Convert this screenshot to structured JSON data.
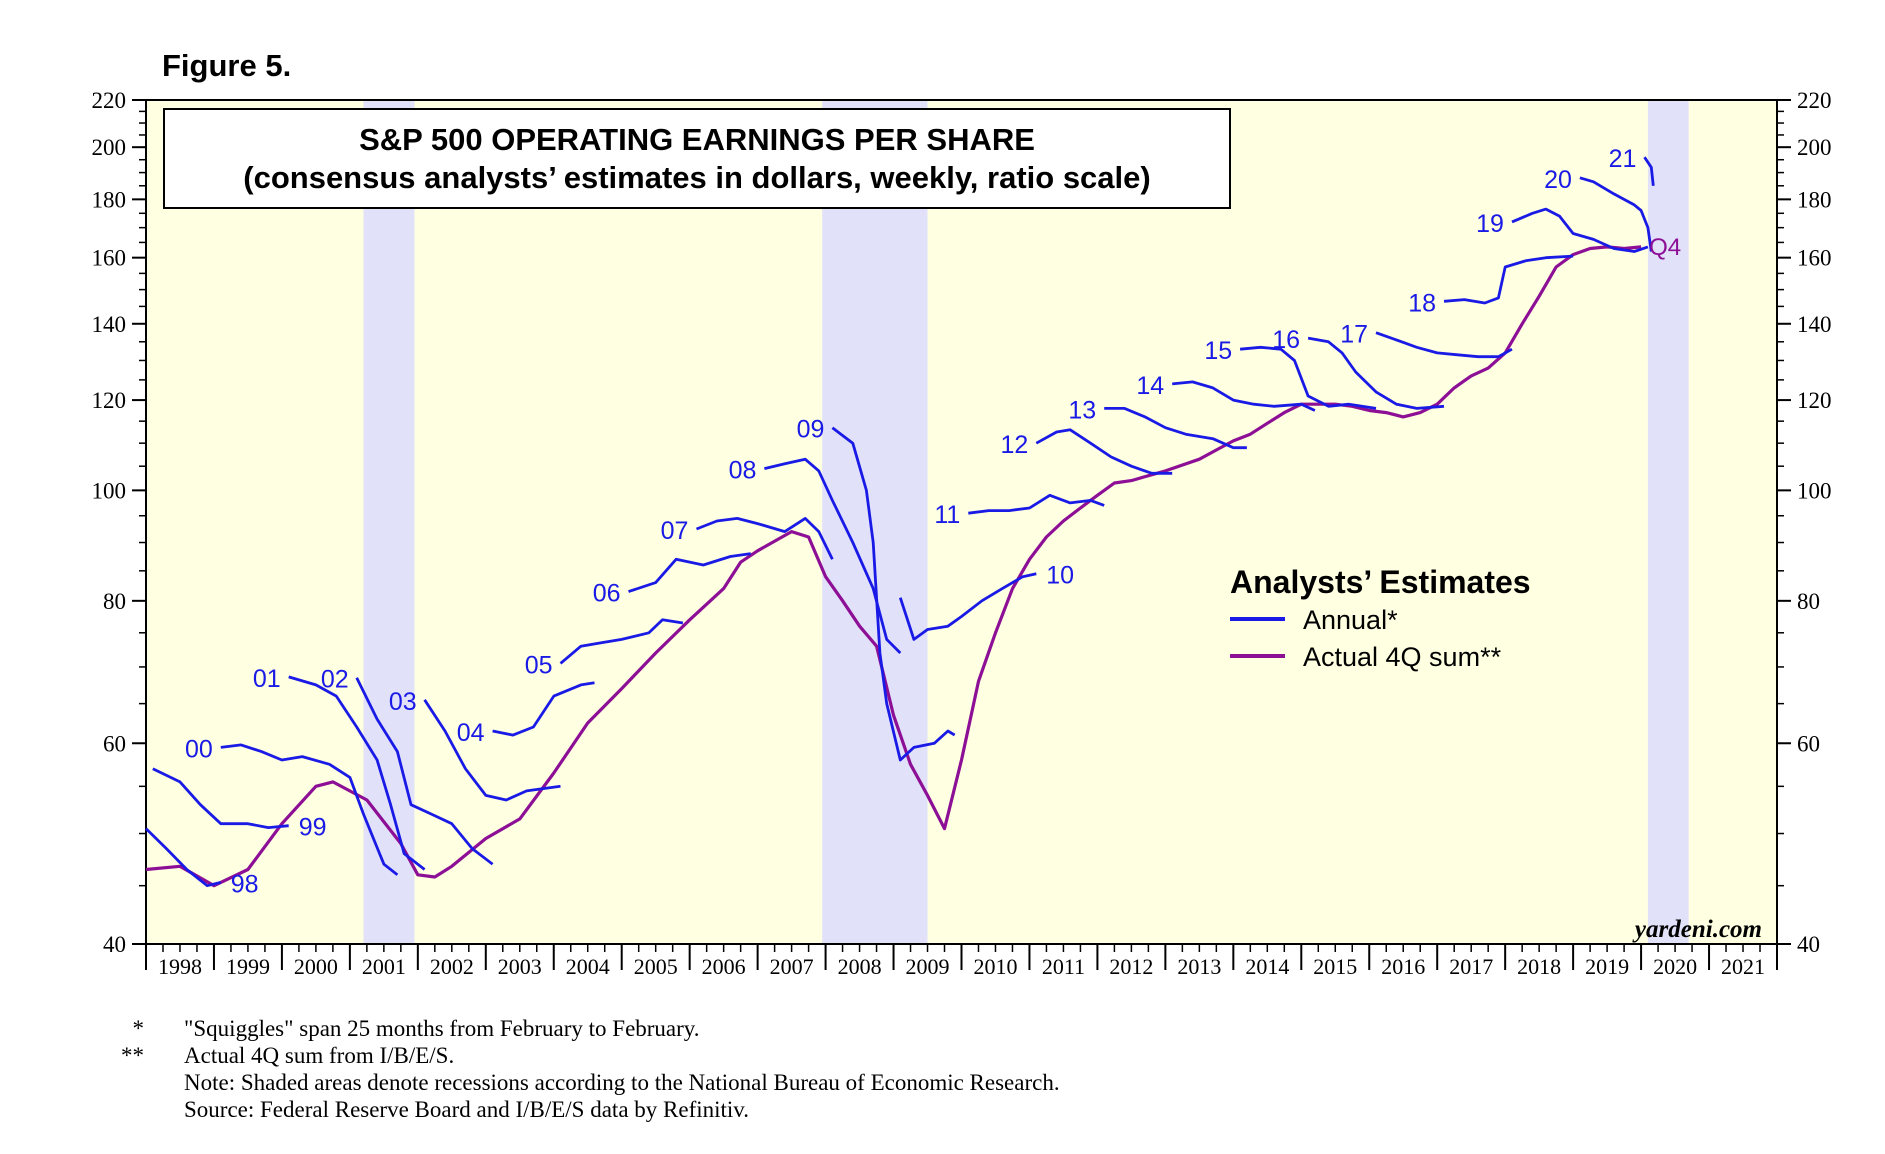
{
  "figure_label": "Figure 5.",
  "watermark": "yardeni.com",
  "notes": {
    "star1_mark": "*",
    "star1_text": "\"Squiggles\" span 25 months from February to February.",
    "star2_mark": "**",
    "star2_text": "Actual 4Q sum from I/B/E/S.",
    "note": "Note: Shaded areas denote recessions according to the National Bureau of Economic Research.",
    "source": "Source: Federal Reserve Board and I/B/E/S data by Refinitiv."
  },
  "colors": {
    "plot_background": "#ffffe1",
    "recession_band": "#e1e1fa",
    "annual_estimates": "#1a1ae6",
    "actual_4q_sum": "#8c0f96",
    "label_blue": "#1a1ae6",
    "label_purple": "#8c0f96"
  },
  "chart_data": {
    "type": "line",
    "title": "S&P 500 OPERATING EARNINGS PER SHARE",
    "subtitle": "(consensus analysts’ estimates in dollars, weekly, ratio scale)",
    "y_scale": "log",
    "ylim": [
      40,
      220
    ],
    "y_ticks": [
      40,
      60,
      80,
      100,
      120,
      140,
      160,
      180,
      200,
      220
    ],
    "y_axes": "left and right",
    "xlim": [
      1998.0,
      2022.0
    ],
    "x_tick_labels": [
      "1998",
      "1999",
      "2000",
      "2001",
      "2002",
      "2003",
      "2004",
      "2005",
      "2006",
      "2007",
      "2008",
      "2009",
      "2010",
      "2011",
      "2012",
      "2013",
      "2014",
      "2015",
      "2016",
      "2017",
      "2018",
      "2019",
      "2020",
      "2021"
    ],
    "grid": false,
    "legend": {
      "title": "Analysts’ Estimates",
      "placement": "center-right",
      "items": [
        {
          "label": "Annual*",
          "series": "annual"
        },
        {
          "label": "Actual 4Q sum**",
          "series": "actual"
        }
      ]
    },
    "recessions": [
      [
        2001.2,
        2001.95
      ],
      [
        2007.95,
        2009.5
      ],
      [
        2020.1,
        2020.7
      ]
    ],
    "annual_estimates": [
      {
        "label": "98",
        "points": [
          [
            1998.0,
            50.5
          ],
          [
            1998.3,
            48.5
          ],
          [
            1998.6,
            46.5
          ],
          [
            1998.9,
            45.0
          ],
          [
            1999.1,
            45.3
          ]
        ]
      },
      {
        "label": "99",
        "points": [
          [
            1998.1,
            57.0
          ],
          [
            1998.5,
            55.5
          ],
          [
            1998.8,
            53.0
          ],
          [
            1999.1,
            51.0
          ],
          [
            1999.5,
            51.0
          ],
          [
            1999.8,
            50.6
          ],
          [
            2000.1,
            50.8
          ]
        ]
      },
      {
        "label": "00",
        "points": [
          [
            1999.1,
            59.5
          ],
          [
            1999.4,
            59.8
          ],
          [
            1999.7,
            59.0
          ],
          [
            2000.0,
            58.0
          ],
          [
            2000.3,
            58.4
          ],
          [
            2000.7,
            57.5
          ],
          [
            2001.0,
            56.0
          ],
          [
            2001.2,
            52.0
          ],
          [
            2001.5,
            47.0
          ],
          [
            2001.7,
            46.0
          ]
        ]
      },
      {
        "label": "01",
        "points": [
          [
            2000.1,
            68.6
          ],
          [
            2000.5,
            67.5
          ],
          [
            2000.8,
            66.0
          ],
          [
            2001.1,
            62.0
          ],
          [
            2001.4,
            58.0
          ],
          [
            2001.6,
            53.0
          ],
          [
            2001.8,
            48.0
          ],
          [
            2002.1,
            46.5
          ]
        ]
      },
      {
        "label": "02",
        "points": [
          [
            2001.1,
            68.5
          ],
          [
            2001.4,
            63.0
          ],
          [
            2001.7,
            59.0
          ],
          [
            2001.9,
            53.0
          ],
          [
            2002.2,
            52.0
          ],
          [
            2002.5,
            51.0
          ],
          [
            2002.8,
            48.5
          ],
          [
            2003.1,
            47.0
          ]
        ]
      },
      {
        "label": "03",
        "points": [
          [
            2002.1,
            65.5
          ],
          [
            2002.4,
            61.5
          ],
          [
            2002.7,
            57.0
          ],
          [
            2003.0,
            54.0
          ],
          [
            2003.3,
            53.5
          ],
          [
            2003.6,
            54.5
          ],
          [
            2004.1,
            55.0
          ]
        ]
      },
      {
        "label": "04",
        "points": [
          [
            2003.1,
            61.5
          ],
          [
            2003.4,
            61.0
          ],
          [
            2003.7,
            62.0
          ],
          [
            2004.0,
            66.0
          ],
          [
            2004.4,
            67.5
          ],
          [
            2004.6,
            67.8
          ]
        ]
      },
      {
        "label": "05",
        "points": [
          [
            2004.1,
            70.5
          ],
          [
            2004.4,
            73.0
          ],
          [
            2004.7,
            73.5
          ],
          [
            2005.0,
            74.0
          ],
          [
            2005.4,
            75.0
          ],
          [
            2005.6,
            77.0
          ],
          [
            2005.9,
            76.5
          ]
        ]
      },
      {
        "label": "06",
        "points": [
          [
            2005.1,
            81.5
          ],
          [
            2005.5,
            83.0
          ],
          [
            2005.8,
            87.0
          ],
          [
            2006.2,
            86.0
          ],
          [
            2006.6,
            87.5
          ],
          [
            2006.9,
            88.0
          ]
        ]
      },
      {
        "label": "07",
        "points": [
          [
            2006.1,
            92.5
          ],
          [
            2006.4,
            94.0
          ],
          [
            2006.7,
            94.5
          ],
          [
            2007.0,
            93.5
          ],
          [
            2007.4,
            92.0
          ],
          [
            2007.7,
            94.5
          ],
          [
            2007.9,
            92.0
          ],
          [
            2008.1,
            87.0
          ]
        ]
      },
      {
        "label": "08",
        "points": [
          [
            2007.1,
            104.5
          ],
          [
            2007.4,
            105.5
          ],
          [
            2007.7,
            106.5
          ],
          [
            2007.9,
            104.0
          ],
          [
            2008.1,
            98.0
          ],
          [
            2008.4,
            90.0
          ],
          [
            2008.7,
            82.0
          ],
          [
            2008.9,
            74.0
          ],
          [
            2009.1,
            72.0
          ]
        ]
      },
      {
        "label": "09",
        "points": [
          [
            2008.1,
            113.5
          ],
          [
            2008.4,
            110.0
          ],
          [
            2008.6,
            100.0
          ],
          [
            2008.7,
            90.0
          ],
          [
            2008.8,
            72.0
          ],
          [
            2008.9,
            65.0
          ],
          [
            2009.1,
            58.0
          ],
          [
            2009.3,
            59.5
          ],
          [
            2009.6,
            60.0
          ],
          [
            2009.8,
            61.5
          ],
          [
            2009.9,
            61.0
          ]
        ]
      },
      {
        "label": "10",
        "points": [
          [
            2009.1,
            80.5
          ],
          [
            2009.3,
            74.0
          ],
          [
            2009.5,
            75.5
          ],
          [
            2009.8,
            76.0
          ],
          [
            2010.0,
            77.5
          ],
          [
            2010.3,
            80.0
          ],
          [
            2010.6,
            82.0
          ],
          [
            2010.9,
            84.0
          ],
          [
            2011.1,
            84.5
          ]
        ]
      },
      {
        "label": "11",
        "points": [
          [
            2010.1,
            95.5
          ],
          [
            2010.4,
            96.0
          ],
          [
            2010.7,
            96.0
          ],
          [
            2011.0,
            96.5
          ],
          [
            2011.3,
            99.0
          ],
          [
            2011.6,
            97.5
          ],
          [
            2011.9,
            98.0
          ],
          [
            2012.1,
            97.0
          ]
        ]
      },
      {
        "label": "12",
        "points": [
          [
            2011.1,
            110.0
          ],
          [
            2011.4,
            112.5
          ],
          [
            2011.6,
            113.0
          ],
          [
            2011.9,
            110.0
          ],
          [
            2012.2,
            107.0
          ],
          [
            2012.5,
            105.0
          ],
          [
            2012.8,
            103.5
          ],
          [
            2013.1,
            103.5
          ]
        ]
      },
      {
        "label": "13",
        "points": [
          [
            2012.1,
            118.0
          ],
          [
            2012.4,
            118.0
          ],
          [
            2012.7,
            116.0
          ],
          [
            2013.0,
            113.5
          ],
          [
            2013.3,
            112.0
          ],
          [
            2013.7,
            111.0
          ],
          [
            2014.0,
            109.0
          ],
          [
            2014.2,
            109.0
          ]
        ]
      },
      {
        "label": "14",
        "points": [
          [
            2013.1,
            124.0
          ],
          [
            2013.4,
            124.5
          ],
          [
            2013.7,
            123.0
          ],
          [
            2014.0,
            120.0
          ],
          [
            2014.3,
            119.0
          ],
          [
            2014.6,
            118.5
          ],
          [
            2015.0,
            119.0
          ],
          [
            2015.2,
            117.5
          ]
        ]
      },
      {
        "label": "15",
        "points": [
          [
            2014.1,
            133.0
          ],
          [
            2014.4,
            133.5
          ],
          [
            2014.7,
            133.0
          ],
          [
            2014.9,
            130.0
          ],
          [
            2015.1,
            121.0
          ],
          [
            2015.4,
            118.5
          ],
          [
            2015.7,
            119.0
          ],
          [
            2016.1,
            118.0
          ]
        ]
      },
      {
        "label": "16",
        "points": [
          [
            2015.1,
            136.0
          ],
          [
            2015.4,
            135.0
          ],
          [
            2015.6,
            132.0
          ],
          [
            2015.8,
            127.0
          ],
          [
            2016.1,
            122.0
          ],
          [
            2016.4,
            119.0
          ],
          [
            2016.7,
            118.0
          ],
          [
            2017.1,
            118.5
          ]
        ]
      },
      {
        "label": "17",
        "points": [
          [
            2016.1,
            137.5
          ],
          [
            2016.4,
            135.5
          ],
          [
            2016.7,
            133.5
          ],
          [
            2017.0,
            132.0
          ],
          [
            2017.3,
            131.5
          ],
          [
            2017.6,
            131.0
          ],
          [
            2017.9,
            131.0
          ],
          [
            2018.1,
            133.0
          ]
        ]
      },
      {
        "label": "18",
        "points": [
          [
            2017.1,
            146.5
          ],
          [
            2017.4,
            147.0
          ],
          [
            2017.7,
            146.0
          ],
          [
            2017.9,
            147.5
          ],
          [
            2018.0,
            157.0
          ],
          [
            2018.3,
            159.0
          ],
          [
            2018.6,
            160.0
          ],
          [
            2019.0,
            160.5
          ]
        ]
      },
      {
        "label": "19",
        "points": [
          [
            2018.1,
            172.0
          ],
          [
            2018.4,
            175.0
          ],
          [
            2018.6,
            176.5
          ],
          [
            2018.8,
            174.0
          ],
          [
            2019.0,
            168.0
          ],
          [
            2019.3,
            166.0
          ],
          [
            2019.6,
            163.0
          ],
          [
            2019.9,
            162.0
          ],
          [
            2020.1,
            163.5
          ]
        ]
      },
      {
        "label": "20",
        "points": [
          [
            2019.1,
            188.0
          ],
          [
            2019.3,
            186.5
          ],
          [
            2019.6,
            182.0
          ],
          [
            2019.9,
            178.0
          ],
          [
            2020.0,
            176.0
          ],
          [
            2020.1,
            170.0
          ],
          [
            2020.15,
            162.0
          ]
        ]
      },
      {
        "label": "21",
        "points": [
          [
            2020.05,
            196.0
          ],
          [
            2020.15,
            192.0
          ],
          [
            2020.18,
            185.0
          ]
        ]
      }
    ],
    "actual_4q_sum": {
      "name": "Actual 4Q sum",
      "end_label": "Q4",
      "points": [
        [
          1998.0,
          46.5
        ],
        [
          1998.5,
          46.8
        ],
        [
          1999.0,
          45.0
        ],
        [
          1999.5,
          46.5
        ],
        [
          2000.0,
          51.0
        ],
        [
          2000.5,
          55.0
        ],
        [
          2000.75,
          55.5
        ],
        [
          2001.25,
          53.5
        ],
        [
          2001.75,
          49.0
        ],
        [
          2002.0,
          46.0
        ],
        [
          2002.25,
          45.8
        ],
        [
          2002.5,
          46.8
        ],
        [
          2003.0,
          49.5
        ],
        [
          2003.5,
          51.5
        ],
        [
          2004.0,
          56.5
        ],
        [
          2004.5,
          62.5
        ],
        [
          2005.0,
          67.0
        ],
        [
          2005.5,
          72.0
        ],
        [
          2006.0,
          77.0
        ],
        [
          2006.5,
          82.0
        ],
        [
          2006.75,
          86.5
        ],
        [
          2007.0,
          88.5
        ],
        [
          2007.5,
          92.0
        ],
        [
          2007.75,
          91.0
        ],
        [
          2008.0,
          84.0
        ],
        [
          2008.25,
          80.0
        ],
        [
          2008.5,
          76.0
        ],
        [
          2008.75,
          73.0
        ],
        [
          2009.0,
          63.5
        ],
        [
          2009.25,
          57.5
        ],
        [
          2009.5,
          54.0
        ],
        [
          2009.75,
          50.5
        ],
        [
          2010.0,
          58.0
        ],
        [
          2010.25,
          68.0
        ],
        [
          2010.5,
          75.0
        ],
        [
          2010.75,
          82.0
        ],
        [
          2011.0,
          87.0
        ],
        [
          2011.25,
          91.0
        ],
        [
          2011.5,
          94.0
        ],
        [
          2011.75,
          96.5
        ],
        [
          2012.0,
          99.0
        ],
        [
          2012.25,
          101.5
        ],
        [
          2012.5,
          102.0
        ],
        [
          2012.75,
          103.0
        ],
        [
          2013.0,
          104.0
        ],
        [
          2013.5,
          106.5
        ],
        [
          2013.75,
          108.5
        ],
        [
          2014.0,
          110.5
        ],
        [
          2014.25,
          112.0
        ],
        [
          2014.5,
          114.5
        ],
        [
          2014.75,
          117.0
        ],
        [
          2015.0,
          119.0
        ],
        [
          2015.5,
          119.0
        ],
        [
          2015.75,
          118.5
        ],
        [
          2016.0,
          117.5
        ],
        [
          2016.25,
          117.0
        ],
        [
          2016.5,
          116.0
        ],
        [
          2016.75,
          117.0
        ],
        [
          2017.0,
          119.0
        ],
        [
          2017.25,
          123.0
        ],
        [
          2017.5,
          126.0
        ],
        [
          2017.75,
          128.0
        ],
        [
          2018.0,
          132.0
        ],
        [
          2018.25,
          140.0
        ],
        [
          2018.5,
          148.0
        ],
        [
          2018.75,
          157.0
        ],
        [
          2019.0,
          161.0
        ],
        [
          2019.25,
          163.0
        ],
        [
          2019.5,
          163.5
        ],
        [
          2019.75,
          163.0
        ],
        [
          2020.0,
          163.5
        ]
      ]
    }
  }
}
